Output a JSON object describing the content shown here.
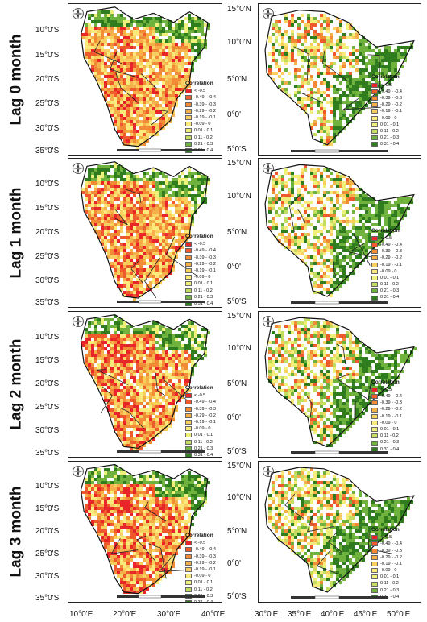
{
  "row_labels": [
    "Lag 0 month",
    "Lag 1 month",
    "Lag 2 month",
    "Lag 3 month"
  ],
  "south_lat_labels": [
    "10°0'S",
    "15°0'S",
    "20°0'S",
    "25°0'S",
    "30°0'S",
    "35°0'S"
  ],
  "east_lat_labels": [
    "15°0'N",
    "10°0'N",
    "5°0'N",
    "0°0'",
    "5°0'S"
  ],
  "south_lon_labels": [
    "10°0'E",
    "20°0'E",
    "30°0'E",
    "40°0'E"
  ],
  "east_lon_labels": [
    "30°0'E",
    "35°0'E",
    "40°0'E",
    "45°0'E",
    "50°0'E"
  ],
  "legend": {
    "title": "Correlation",
    "classes": [
      {
        "label": "< -0.5",
        "color": "#e8262a"
      },
      {
        "label": "-0.49 - -0.4",
        "color": "#ee5a2c"
      },
      {
        "label": "-0.39 - -0.3",
        "color": "#f28b36"
      },
      {
        "label": "-0.29 - -0.2",
        "color": "#f6b04a"
      },
      {
        "label": "-0.19 - -0.1",
        "color": "#f9cf60"
      },
      {
        "label": "-0.09 - 0",
        "color": "#fbe97c"
      },
      {
        "label": "0.01 - 0.1",
        "color": "#eef07a"
      },
      {
        "label": "0.11 - 0.2",
        "color": "#c2dd5f"
      },
      {
        "label": "0.21 - 0.3",
        "color": "#6fb23e"
      },
      {
        "label": "0.31 - 0.4",
        "color": "#2f7d1e"
      }
    ]
  }
}
